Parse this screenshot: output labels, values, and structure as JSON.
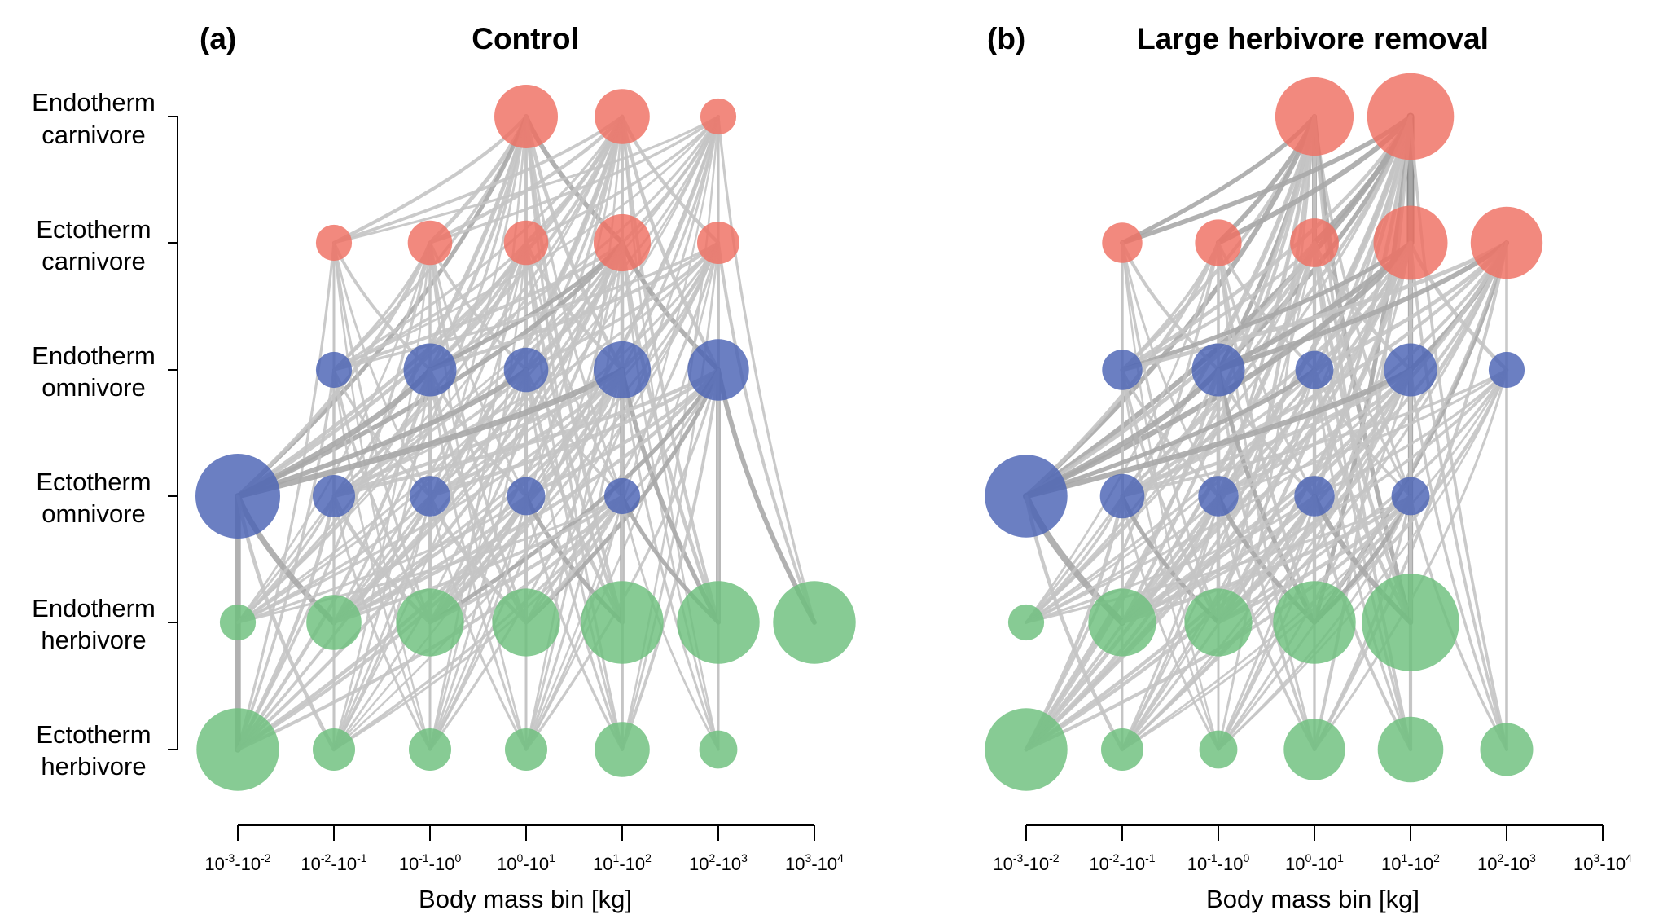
{
  "chart_data": [
    {
      "type": "network",
      "panel_label": "(a)",
      "title": "Control",
      "xlabel": "Body mass bin [kg]",
      "categories": [
        "10^-3-10^-2",
        "10^-2-10^-1",
        "10^-1-10^0",
        "10^0-10^1",
        "10^1-10^2",
        "10^2-10^3",
        "10^3-10^4"
      ],
      "groups": [
        "Endotherm carnivore",
        "Ectotherm carnivore",
        "Endotherm omnivore",
        "Ectotherm omnivore",
        "Endotherm herbivore",
        "Ectotherm herbivore"
      ],
      "nodes": [
        {
          "group": "Endotherm carnivore",
          "bin": 3,
          "size": 3.0,
          "color": "#ef6f61"
        },
        {
          "group": "Endotherm carnivore",
          "bin": 4,
          "size": 2.6,
          "color": "#ef6f61"
        },
        {
          "group": "Endotherm carnivore",
          "bin": 5,
          "size": 1.7,
          "color": "#ef6f61"
        },
        {
          "group": "Ectotherm carnivore",
          "bin": 1,
          "size": 1.7,
          "color": "#ef6f61"
        },
        {
          "group": "Ectotherm carnivore",
          "bin": 2,
          "size": 2.1,
          "color": "#ef6f61"
        },
        {
          "group": "Ectotherm carnivore",
          "bin": 3,
          "size": 2.1,
          "color": "#ef6f61"
        },
        {
          "group": "Ectotherm carnivore",
          "bin": 4,
          "size": 2.7,
          "color": "#ef6f61"
        },
        {
          "group": "Ectotherm carnivore",
          "bin": 5,
          "size": 2.0,
          "color": "#ef6f61"
        },
        {
          "group": "Endotherm omnivore",
          "bin": 1,
          "size": 1.7,
          "color": "#4a63b5"
        },
        {
          "group": "Endotherm omnivore",
          "bin": 2,
          "size": 2.5,
          "color": "#4a63b5"
        },
        {
          "group": "Endotherm omnivore",
          "bin": 3,
          "size": 2.1,
          "color": "#4a63b5"
        },
        {
          "group": "Endotherm omnivore",
          "bin": 4,
          "size": 2.7,
          "color": "#4a63b5"
        },
        {
          "group": "Endotherm omnivore",
          "bin": 5,
          "size": 2.9,
          "color": "#4a63b5"
        },
        {
          "group": "Ectotherm omnivore",
          "bin": 0,
          "size": 4.0,
          "color": "#4a63b5"
        },
        {
          "group": "Ectotherm omnivore",
          "bin": 1,
          "size": 2.0,
          "color": "#4a63b5"
        },
        {
          "group": "Ectotherm omnivore",
          "bin": 2,
          "size": 1.9,
          "color": "#4a63b5"
        },
        {
          "group": "Ectotherm omnivore",
          "bin": 3,
          "size": 1.8,
          "color": "#4a63b5"
        },
        {
          "group": "Ectotherm omnivore",
          "bin": 4,
          "size": 1.7,
          "color": "#4a63b5"
        },
        {
          "group": "Endotherm herbivore",
          "bin": 0,
          "size": 1.7,
          "color": "#6cc07c"
        },
        {
          "group": "Endotherm herbivore",
          "bin": 1,
          "size": 2.6,
          "color": "#6cc07c"
        },
        {
          "group": "Endotherm herbivore",
          "bin": 2,
          "size": 3.2,
          "color": "#6cc07c"
        },
        {
          "group": "Endotherm herbivore",
          "bin": 3,
          "size": 3.2,
          "color": "#6cc07c"
        },
        {
          "group": "Endotherm herbivore",
          "bin": 4,
          "size": 3.9,
          "color": "#6cc07c"
        },
        {
          "group": "Endotherm herbivore",
          "bin": 5,
          "size": 3.9,
          "color": "#6cc07c"
        },
        {
          "group": "Endotherm herbivore",
          "bin": 6,
          "size": 3.9,
          "color": "#6cc07c"
        },
        {
          "group": "Ectotherm herbivore",
          "bin": 0,
          "size": 3.9,
          "color": "#6cc07c"
        },
        {
          "group": "Ectotherm herbivore",
          "bin": 1,
          "size": 2.0,
          "color": "#6cc07c"
        },
        {
          "group": "Ectotherm herbivore",
          "bin": 2,
          "size": 2.0,
          "color": "#6cc07c"
        },
        {
          "group": "Ectotherm herbivore",
          "bin": 3,
          "size": 2.0,
          "color": "#6cc07c"
        },
        {
          "group": "Ectotherm herbivore",
          "bin": 4,
          "size": 2.6,
          "color": "#6cc07c"
        },
        {
          "group": "Ectotherm herbivore",
          "bin": 5,
          "size": 1.8,
          "color": "#6cc07c"
        }
      ]
    },
    {
      "type": "network",
      "panel_label": "(b)",
      "title": "Large herbivore removal",
      "xlabel": "Body mass bin [kg]",
      "categories": [
        "10^-3-10^-2",
        "10^-2-10^-1",
        "10^-1-10^0",
        "10^0-10^1",
        "10^1-10^2",
        "10^2-10^3",
        "10^3-10^4"
      ],
      "groups": [
        "Endotherm carnivore",
        "Ectotherm carnivore",
        "Endotherm omnivore",
        "Ectotherm omnivore",
        "Endotherm herbivore",
        "Ectotherm herbivore"
      ],
      "nodes": [
        {
          "group": "Endotherm carnivore",
          "bin": 3,
          "size": 3.7,
          "color": "#ef6f61"
        },
        {
          "group": "Endotherm carnivore",
          "bin": 4,
          "size": 4.1,
          "color": "#ef6f61"
        },
        {
          "group": "Ectotherm carnivore",
          "bin": 1,
          "size": 1.9,
          "color": "#ef6f61"
        },
        {
          "group": "Ectotherm carnivore",
          "bin": 2,
          "size": 2.2,
          "color": "#ef6f61"
        },
        {
          "group": "Ectotherm carnivore",
          "bin": 3,
          "size": 2.3,
          "color": "#ef6f61"
        },
        {
          "group": "Ectotherm carnivore",
          "bin": 4,
          "size": 3.5,
          "color": "#ef6f61"
        },
        {
          "group": "Ectotherm carnivore",
          "bin": 5,
          "size": 3.4,
          "color": "#ef6f61"
        },
        {
          "group": "Endotherm omnivore",
          "bin": 1,
          "size": 1.9,
          "color": "#4a63b5"
        },
        {
          "group": "Endotherm omnivore",
          "bin": 2,
          "size": 2.5,
          "color": "#4a63b5"
        },
        {
          "group": "Endotherm omnivore",
          "bin": 3,
          "size": 1.8,
          "color": "#4a63b5"
        },
        {
          "group": "Endotherm omnivore",
          "bin": 4,
          "size": 2.5,
          "color": "#4a63b5"
        },
        {
          "group": "Endotherm omnivore",
          "bin": 5,
          "size": 1.7,
          "color": "#4a63b5"
        },
        {
          "group": "Ectotherm omnivore",
          "bin": 0,
          "size": 3.9,
          "color": "#4a63b5"
        },
        {
          "group": "Ectotherm omnivore",
          "bin": 1,
          "size": 2.1,
          "color": "#4a63b5"
        },
        {
          "group": "Ectotherm omnivore",
          "bin": 2,
          "size": 1.9,
          "color": "#4a63b5"
        },
        {
          "group": "Ectotherm omnivore",
          "bin": 3,
          "size": 1.9,
          "color": "#4a63b5"
        },
        {
          "group": "Ectotherm omnivore",
          "bin": 4,
          "size": 1.8,
          "color": "#4a63b5"
        },
        {
          "group": "Endotherm herbivore",
          "bin": 0,
          "size": 1.7,
          "color": "#6cc07c"
        },
        {
          "group": "Endotherm herbivore",
          "bin": 1,
          "size": 3.2,
          "color": "#6cc07c"
        },
        {
          "group": "Endotherm herbivore",
          "bin": 2,
          "size": 3.2,
          "color": "#6cc07c"
        },
        {
          "group": "Endotherm herbivore",
          "bin": 3,
          "size": 3.9,
          "color": "#6cc07c"
        },
        {
          "group": "Endotherm herbivore",
          "bin": 4,
          "size": 4.6,
          "color": "#6cc07c"
        },
        {
          "group": "Ectotherm herbivore",
          "bin": 0,
          "size": 3.9,
          "color": "#6cc07c"
        },
        {
          "group": "Ectotherm herbivore",
          "bin": 1,
          "size": 2.0,
          "color": "#6cc07c"
        },
        {
          "group": "Ectotherm herbivore",
          "bin": 2,
          "size": 1.8,
          "color": "#6cc07c"
        },
        {
          "group": "Ectotherm herbivore",
          "bin": 3,
          "size": 2.9,
          "color": "#6cc07c"
        },
        {
          "group": "Ectotherm herbivore",
          "bin": 4,
          "size": 3.1,
          "color": "#6cc07c"
        },
        {
          "group": "Ectotherm herbivore",
          "bin": 5,
          "size": 2.5,
          "color": "#6cc07c"
        }
      ]
    }
  ],
  "group_labels": [
    {
      "line1": "Endotherm",
      "line2": "carnivore"
    },
    {
      "line1": "Ectotherm",
      "line2": "carnivore"
    },
    {
      "line1": "Endotherm",
      "line2": "omnivore"
    },
    {
      "line1": "Ectotherm",
      "line2": "omnivore"
    },
    {
      "line1": "Endotherm",
      "line2": "herbivore"
    },
    {
      "line1": "Ectotherm",
      "line2": "herbivore"
    }
  ],
  "ticks": [
    {
      "a": "10",
      "ae": "-3",
      "b": "10",
      "be": "-2"
    },
    {
      "a": "10",
      "ae": "-2",
      "b": "10",
      "be": "-1"
    },
    {
      "a": "10",
      "ae": "-1",
      "b": "10",
      "be": "0"
    },
    {
      "a": "10",
      "ae": "0",
      "b": "10",
      "be": "1"
    },
    {
      "a": "10",
      "ae": "1",
      "b": "10",
      "be": "2"
    },
    {
      "a": "10",
      "ae": "2",
      "b": "10",
      "be": "3"
    },
    {
      "a": "10",
      "ae": "3",
      "b": "10",
      "be": "4"
    }
  ],
  "colors": {
    "carnivore": "#ef6f61",
    "omnivore": "#4a63b5",
    "herbivore": "#6cc07c",
    "link_light": "#c4c4c4",
    "link_mid": "#a9a9a9",
    "link_dark": "#7d7d7d"
  }
}
